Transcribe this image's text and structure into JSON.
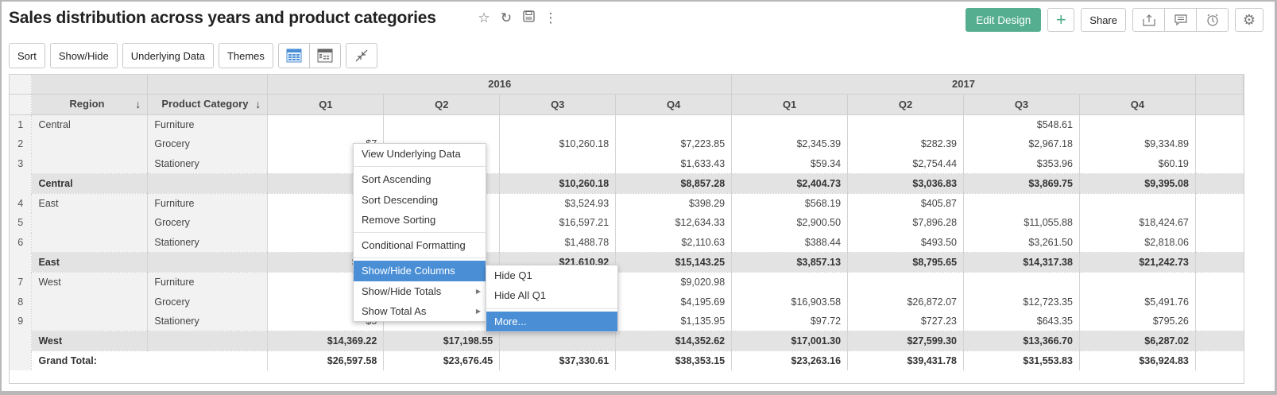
{
  "header": {
    "title": "Sales distribution across years and product categories",
    "title_icons": [
      "star-icon",
      "refresh-icon",
      "save-icon",
      "more-vertical-icon"
    ],
    "edit_design_label": "Edit Design",
    "add_label": "+",
    "share_label": "Share",
    "action_icons": [
      "export-icon",
      "comment-icon",
      "alarm-icon"
    ],
    "settings_icon": "gear-icon"
  },
  "toolbar": {
    "sort_label": "Sort",
    "show_hide_label": "Show/Hide",
    "underlying_data_label": "Underlying Data",
    "themes_label": "Themes",
    "icons": [
      "tabular-view-icon",
      "compact-view-icon",
      "collapse-icon"
    ]
  },
  "table": {
    "years": [
      "2016",
      "2017"
    ],
    "quarters": [
      "Q1",
      "Q2",
      "Q3",
      "Q4",
      "Q1",
      "Q2",
      "Q3",
      "Q4"
    ],
    "dim_headers": [
      "Region",
      "Product Category"
    ],
    "rows": [
      {
        "n": "1",
        "region": "Central",
        "cat": "Furniture",
        "v": [
          "",
          "",
          "",
          "",
          "",
          "",
          "$548.61",
          ""
        ]
      },
      {
        "n": "2",
        "region": "",
        "cat": "Grocery",
        "v": [
          "$7",
          "",
          "$10,260.18",
          "$7,223.85",
          "$2,345.39",
          "$282.39",
          "$2,967.18",
          "$9,334.89"
        ]
      },
      {
        "n": "3",
        "region": "",
        "cat": "Stationery",
        "v": [
          "$7",
          "",
          "",
          "$1,633.43",
          "$59.34",
          "$2,754.44",
          "$353.96",
          "$60.19"
        ]
      },
      {
        "sub": true,
        "region": "Central",
        "v": [
          "$1,5",
          "",
          "$10,260.18",
          "$8,857.28",
          "$2,404.73",
          "$3,036.83",
          "$3,869.75",
          "$9,395.08"
        ]
      },
      {
        "n": "4",
        "region": "East",
        "cat": "Furniture",
        "v": [
          "$5",
          "",
          "$3,524.93",
          "$398.29",
          "$568.19",
          "$405.87",
          "",
          ""
        ]
      },
      {
        "n": "5",
        "region": "",
        "cat": "Grocery",
        "v": [
          "$9,2",
          "",
          "$16,597.21",
          "$12,634.33",
          "$2,900.50",
          "$7,896.28",
          "$11,055.88",
          "$18,424.67"
        ]
      },
      {
        "n": "6",
        "region": "",
        "cat": "Stationery",
        "v": [
          "$8",
          "",
          "$1,488.78",
          "$2,110.63",
          "$388.44",
          "$493.50",
          "$3,261.50",
          "$2,818.06"
        ]
      },
      {
        "sub": true,
        "region": "East",
        "v": [
          "$10,6",
          "",
          "$21,610.92",
          "$15,143.25",
          "$3,857.13",
          "$8,795.65",
          "$14,317.38",
          "$21,242.73"
        ]
      },
      {
        "n": "7",
        "region": "West",
        "cat": "Furniture",
        "v": [
          "$8,9",
          "",
          "",
          "$9,020.98",
          "",
          "",
          "",
          ""
        ]
      },
      {
        "n": "8",
        "region": "",
        "cat": "Grocery",
        "v": [
          "$4,8",
          "",
          "",
          "$4,195.69",
          "$16,903.58",
          "$26,872.07",
          "$12,723.35",
          "$5,491.76"
        ]
      },
      {
        "n": "9",
        "region": "",
        "cat": "Stationery",
        "v": [
          "$5",
          "",
          "",
          "$1,135.95",
          "$97.72",
          "$727.23",
          "$643.35",
          "$795.26"
        ]
      },
      {
        "sub": true,
        "region": "West",
        "v": [
          "$14,369.22",
          "$17,198.55",
          "",
          "$14,352.62",
          "$17,001.30",
          "$27,599.30",
          "$13,366.70",
          "$6,287.02"
        ]
      },
      {
        "grand": true,
        "region": "Grand Total:",
        "v": [
          "$26,597.58",
          "$23,676.45",
          "$37,330.61",
          "$38,353.15",
          "$23,263.16",
          "$39,431.78",
          "$31,553.83",
          "$36,924.83"
        ]
      }
    ]
  },
  "context_menu": {
    "items": [
      "View Underlying Data",
      "Sort Ascending",
      "Sort Descending",
      "Remove Sorting",
      "Conditional Formatting",
      "Show/Hide Columns",
      "Show/Hide Totals",
      "Show Total As"
    ],
    "active_item": "Show/Hide Columns"
  },
  "submenu": {
    "items": [
      "Hide Q1",
      "Hide All Q1",
      "More..."
    ],
    "active_item": "More..."
  },
  "colors": {
    "accent_green": "#55ae8f",
    "menu_highlight": "#4a8fd6",
    "header_bg": "#e3e3e3"
  }
}
